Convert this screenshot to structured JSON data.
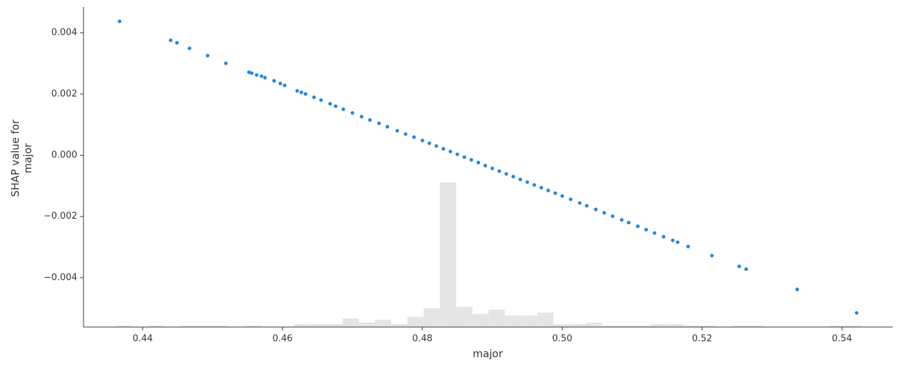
{
  "chart_data": {
    "type": "scatter",
    "xlabel": "major",
    "ylabel": "SHAP value for\nmajor",
    "xlim": [
      0.43154,
      0.54726
    ],
    "ylim": [
      -0.00561,
      0.00484
    ],
    "xticks": [
      0.44,
      0.46,
      0.48,
      {
        "value": 0.5,
        "label": "0.50"
      },
      0.52,
      0.54
    ],
    "yticks": [
      {
        "value": -0.004,
        "label": "−0.004"
      },
      {
        "value": -0.002,
        "label": "−0.002"
      },
      {
        "value": 0,
        "label": "0.000"
      },
      0.002,
      0.004
    ],
    "color": "#1e88e5",
    "x": [
      0.4367,
      0.444,
      0.4449,
      0.4467,
      0.4493,
      0.4519,
      0.4552,
      0.4556,
      0.4563,
      0.457,
      0.4575,
      0.4588,
      0.4597,
      0.4603,
      0.4621,
      0.4627,
      0.4633,
      0.4645,
      0.4655,
      0.4668,
      0.4676,
      0.4687,
      0.47,
      0.4713,
      0.4725,
      0.4738,
      0.475,
      0.4764,
      0.4776,
      0.4788,
      0.48,
      0.481,
      0.482,
      0.483,
      0.484,
      0.485,
      0.486,
      0.487,
      0.488,
      0.489,
      0.49,
      0.491,
      0.492,
      0.493,
      0.494,
      0.495,
      0.496,
      0.497,
      0.498,
      0.499,
      0.5,
      0.5012,
      0.5025,
      0.5035,
      0.5048,
      0.506,
      0.5072,
      0.5085,
      0.5095,
      0.5108,
      0.512,
      0.5132,
      0.5145,
      0.5158,
      0.5165,
      0.518,
      0.5214,
      0.5253,
      0.5263,
      0.5336,
      0.5421
    ],
    "values": [
      0.00437,
      0.00375,
      0.00367,
      0.00349,
      0.00325,
      0.003,
      0.00271,
      0.00268,
      0.00262,
      0.00258,
      0.00253,
      0.00243,
      0.00234,
      0.00228,
      0.0021,
      0.00205,
      0.002,
      0.00189,
      0.0018,
      0.00168,
      0.0016,
      0.0015,
      0.00138,
      0.00126,
      0.00115,
      0.00104,
      0.00093,
      0.0008,
      0.00069,
      0.00059,
      0.00048,
      0.00039,
      0.0003,
      0.00021,
      0.00012,
      3e-05,
      -6e-05,
      -0.00015,
      -0.00024,
      -0.00034,
      -0.00043,
      -0.00052,
      -0.00061,
      -0.0007,
      -0.00079,
      -0.00088,
      -0.00097,
      -0.00106,
      -0.00115,
      -0.00124,
      -0.00133,
      -0.00144,
      -0.00156,
      -0.00165,
      -0.00177,
      -0.00188,
      -0.00199,
      -0.00211,
      -0.0022,
      -0.00232,
      -0.00243,
      -0.00254,
      -0.00266,
      -0.00278,
      -0.00284,
      -0.00298,
      -0.00328,
      -0.00363,
      -0.00372,
      -0.00438,
      -0.00515
    ],
    "histogram": {
      "color": "#e5e5e5",
      "y2lim": [
        0,
        221.6
      ],
      "bins": [
        0.4361,
        0.43842,
        0.44074,
        0.44306,
        0.44538,
        0.4477,
        0.45002,
        0.45234,
        0.45466,
        0.45698,
        0.4593,
        0.46162,
        0.46394,
        0.46626,
        0.46858,
        0.4709,
        0.47322,
        0.47554,
        0.47786,
        0.48018,
        0.4825,
        0.48482,
        0.48714,
        0.48946,
        0.49178,
        0.4941,
        0.49642,
        0.49874,
        0.50106,
        0.50338,
        0.5057,
        0.50802,
        0.51034,
        0.51266,
        0.51498,
        0.5173,
        0.51962,
        0.52194,
        0.52426,
        0.52658,
        0.5289,
        0.53122,
        0.53354,
        0.53586,
        0.53818,
        0.5405,
        0.54282
      ],
      "counts": [
        1,
        0,
        1,
        0,
        1,
        1,
        1,
        0,
        1,
        0,
        0,
        2,
        2,
        2,
        6,
        3,
        5,
        2,
        7,
        13,
        100,
        14,
        9,
        12,
        8,
        8,
        10,
        2,
        2,
        3,
        1,
        1,
        1,
        2,
        2,
        1,
        1,
        0,
        1,
        1,
        0,
        0,
        0,
        0,
        1,
        1
      ]
    }
  }
}
